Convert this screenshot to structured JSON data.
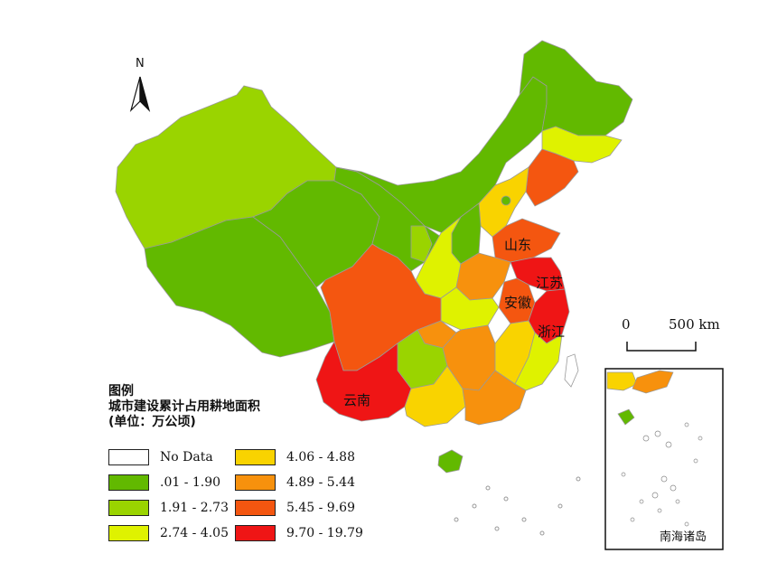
{
  "map": {
    "north_label": "N",
    "scale_bar": {
      "start_label": "0",
      "end_label": "500 km"
    },
    "inset_label": "南海诸岛",
    "province_labels": {
      "shandong": "山东",
      "jiangsu": "江苏",
      "anhui": "安徽",
      "zhejiang": "浙江",
      "yunnan": "云南"
    }
  },
  "legend": {
    "title_line1": "图例",
    "title_line2": "城市建设累计占用耕地面积",
    "title_line3": "(单位：万公顷)",
    "items": [
      {
        "label": "No Data",
        "color": "#ffffff"
      },
      {
        "label": ".01 - 1.90",
        "color": "#62b900"
      },
      {
        "label": "1.91 - 2.73",
        "color": "#9ad400"
      },
      {
        "label": "2.74 - 4.05",
        "color": "#dff200"
      },
      {
        "label": "4.06 - 4.88",
        "color": "#f9d300"
      },
      {
        "label": "4.89 - 5.44",
        "color": "#f7910d"
      },
      {
        "label": "5.45 - 9.69",
        "color": "#f45610"
      },
      {
        "label": "9.70 - 19.79",
        "color": "#ef1515"
      }
    ]
  }
}
